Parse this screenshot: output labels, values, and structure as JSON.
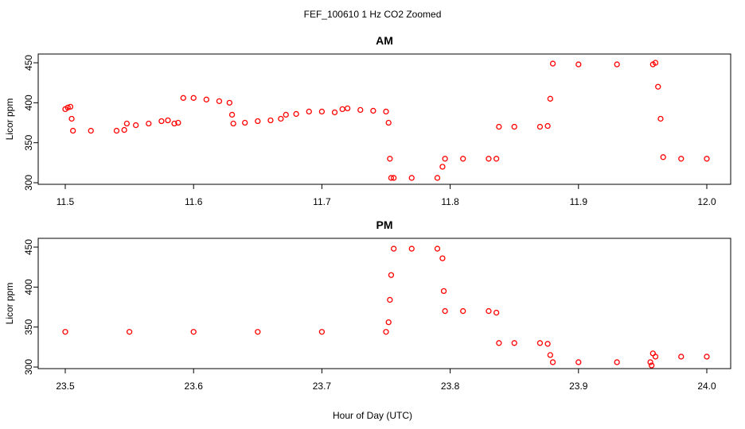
{
  "title": "FEF_100610  1 Hz CO2 Zoomed",
  "xlabel": "Hour of Day (UTC)",
  "colors": {
    "points": "#ff0000",
    "frame": "#000000"
  },
  "chart_data": [
    {
      "type": "scatter",
      "title": "AM",
      "ylabel": "Licor ppm",
      "xlim": [
        11.5,
        12.0
      ],
      "ylim": [
        300,
        455
      ],
      "xticks": [
        11.5,
        11.6,
        11.7,
        11.8,
        11.9,
        12.0
      ],
      "xtick_labels": [
        "11.5",
        "11.6",
        "11.7",
        "11.8",
        "11.9",
        "12.0"
      ],
      "yticks": [
        300,
        350,
        400,
        450
      ],
      "ytick_labels": [
        "300",
        "350",
        "400",
        "450"
      ],
      "series": [
        {
          "marker": "open-circle",
          "x": [
            11.5,
            11.502,
            11.504,
            11.505,
            11.506,
            11.52,
            11.54,
            11.546,
            11.548,
            11.555,
            11.565,
            11.575,
            11.58,
            11.585,
            11.588,
            11.592,
            11.6,
            11.61,
            11.62,
            11.628,
            11.63,
            11.631,
            11.64,
            11.65,
            11.66,
            11.668,
            11.672,
            11.68,
            11.69,
            11.7,
            11.71,
            11.716,
            11.72,
            11.73,
            11.74,
            11.75,
            11.752,
            11.753,
            11.754,
            11.756,
            11.77,
            11.79,
            11.794,
            11.796,
            11.81,
            11.83,
            11.836,
            11.838,
            11.85,
            11.87,
            11.876,
            11.878,
            11.88,
            11.9,
            11.93,
            11.958,
            11.96,
            11.962,
            11.964,
            11.966,
            11.98,
            12.0
          ],
          "y": [
            392,
            394,
            395,
            380,
            365,
            365,
            365,
            366,
            374,
            372,
            374,
            377,
            378,
            374,
            375,
            406,
            406,
            404,
            402,
            400,
            385,
            374,
            375,
            377,
            378,
            380,
            385,
            386,
            389,
            389,
            388,
            392,
            393,
            391,
            390,
            389,
            375,
            330,
            306,
            306,
            306,
            306,
            320,
            330,
            330,
            330,
            330,
            370,
            370,
            370,
            371,
            405,
            449,
            448,
            448,
            448,
            450,
            420,
            380,
            332,
            330,
            330
          ]
        }
      ]
    },
    {
      "type": "scatter",
      "title": "PM",
      "ylabel": "Licor ppm",
      "xlim": [
        23.5,
        24.0
      ],
      "ylim": [
        300,
        455
      ],
      "xticks": [
        23.5,
        23.6,
        23.7,
        23.8,
        23.9,
        24.0
      ],
      "xtick_labels": [
        "23.5",
        "23.6",
        "23.7",
        "23.8",
        "23.9",
        "24.0"
      ],
      "yticks": [
        300,
        350,
        400,
        450
      ],
      "ytick_labels": [
        "300",
        "350",
        "400",
        "450"
      ],
      "series": [
        {
          "marker": "open-circle",
          "x": [
            23.5,
            23.55,
            23.6,
            23.65,
            23.7,
            23.75,
            23.752,
            23.753,
            23.754,
            23.756,
            23.77,
            23.79,
            23.794,
            23.795,
            23.796,
            23.81,
            23.83,
            23.836,
            23.838,
            23.85,
            23.87,
            23.876,
            23.878,
            23.88,
            23.9,
            23.93,
            23.956,
            23.957,
            23.958,
            23.96,
            23.98,
            24.0
          ],
          "y": [
            344,
            344,
            344,
            344,
            344,
            344,
            356,
            384,
            415,
            448,
            448,
            448,
            436,
            395,
            370,
            370,
            370,
            368,
            330,
            330,
            330,
            329,
            315,
            306,
            306,
            306,
            306,
            302,
            317,
            313,
            313,
            313
          ]
        }
      ]
    }
  ]
}
